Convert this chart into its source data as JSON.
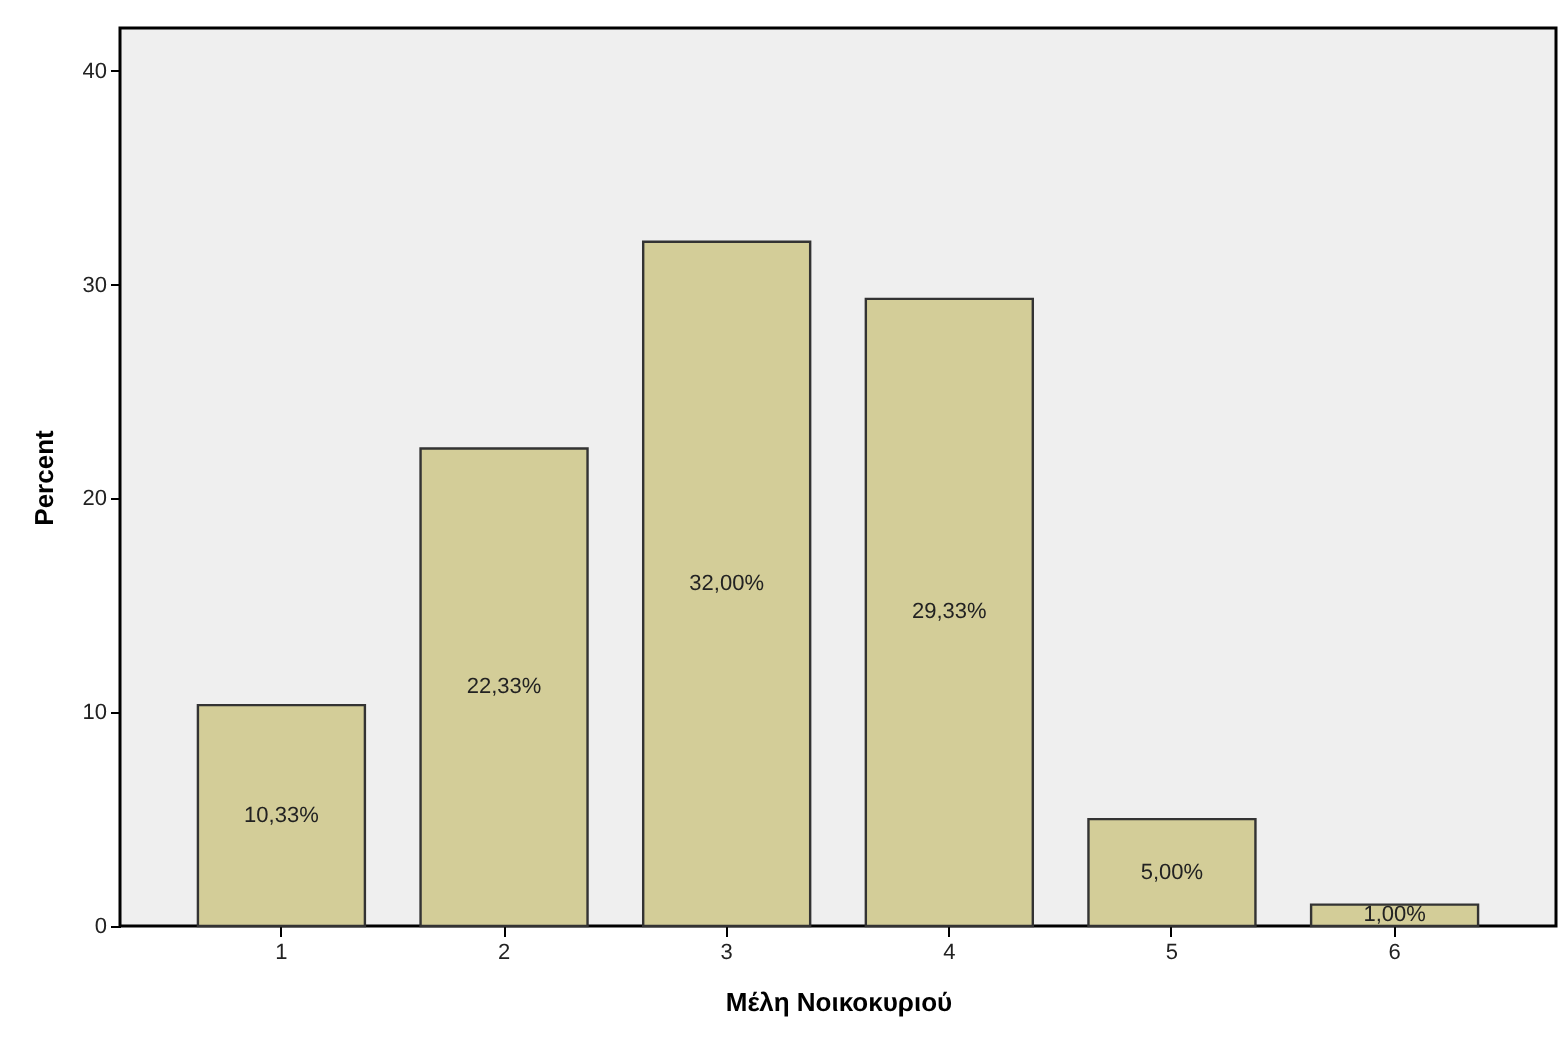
{
  "chart_data": {
    "type": "bar",
    "xlabel": "Μέλη Νοικοκυριού",
    "ylabel": "Percent",
    "categories": [
      "1",
      "2",
      "3",
      "4",
      "5",
      "6"
    ],
    "values": [
      10.33,
      22.33,
      32.0,
      29.33,
      5.0,
      1.0
    ],
    "value_labels": [
      "10,33%",
      "22,33%",
      "32,00%",
      "29,33%",
      "5,00%",
      "1,00%"
    ],
    "color": "#d3cd98",
    "ylim": [
      0,
      42
    ],
    "yticks": [
      0,
      10,
      20,
      30,
      40
    ],
    "grid": false
  }
}
